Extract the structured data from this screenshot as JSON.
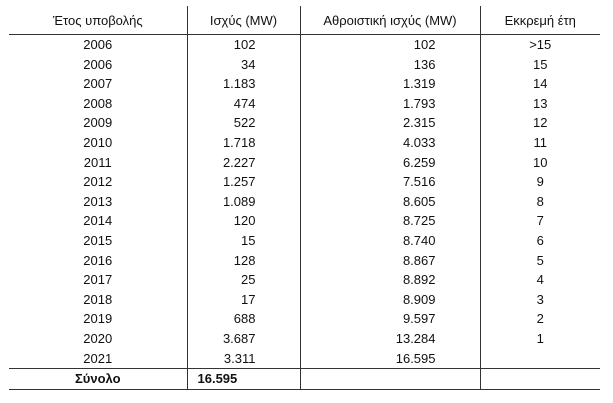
{
  "table": {
    "headers": [
      "Έτος υποβολής",
      "Ισχύς (MW)",
      "Αθροιστική ισχύς (MW)",
      "Εκκρεμή έτη"
    ],
    "rows": [
      [
        "2006",
        "102",
        "102",
        ">15"
      ],
      [
        "2006",
        "34",
        "136",
        "15"
      ],
      [
        "2007",
        "1.183",
        "1.319",
        "14"
      ],
      [
        "2008",
        "474",
        "1.793",
        "13"
      ],
      [
        "2009",
        "522",
        "2.315",
        "12"
      ],
      [
        "2010",
        "1.718",
        "4.033",
        "11"
      ],
      [
        "2011",
        "2.227",
        "6.259",
        "10"
      ],
      [
        "2012",
        "1.257",
        "7.516",
        "9"
      ],
      [
        "2013",
        "1.089",
        "8.605",
        "8"
      ],
      [
        "2014",
        "120",
        "8.725",
        "7"
      ],
      [
        "2015",
        "15",
        "8.740",
        "6"
      ],
      [
        "2016",
        "128",
        "8.867",
        "5"
      ],
      [
        "2017",
        "25",
        "8.892",
        "4"
      ],
      [
        "2018",
        "17",
        "8.909",
        "3"
      ],
      [
        "2019",
        "688",
        "9.597",
        "2"
      ],
      [
        "2020",
        "3.687",
        "13.284",
        "1"
      ],
      [
        "2021",
        "3.311",
        "16.595",
        ""
      ]
    ],
    "total": [
      "Σύνολο",
      "16.595",
      "",
      ""
    ]
  }
}
